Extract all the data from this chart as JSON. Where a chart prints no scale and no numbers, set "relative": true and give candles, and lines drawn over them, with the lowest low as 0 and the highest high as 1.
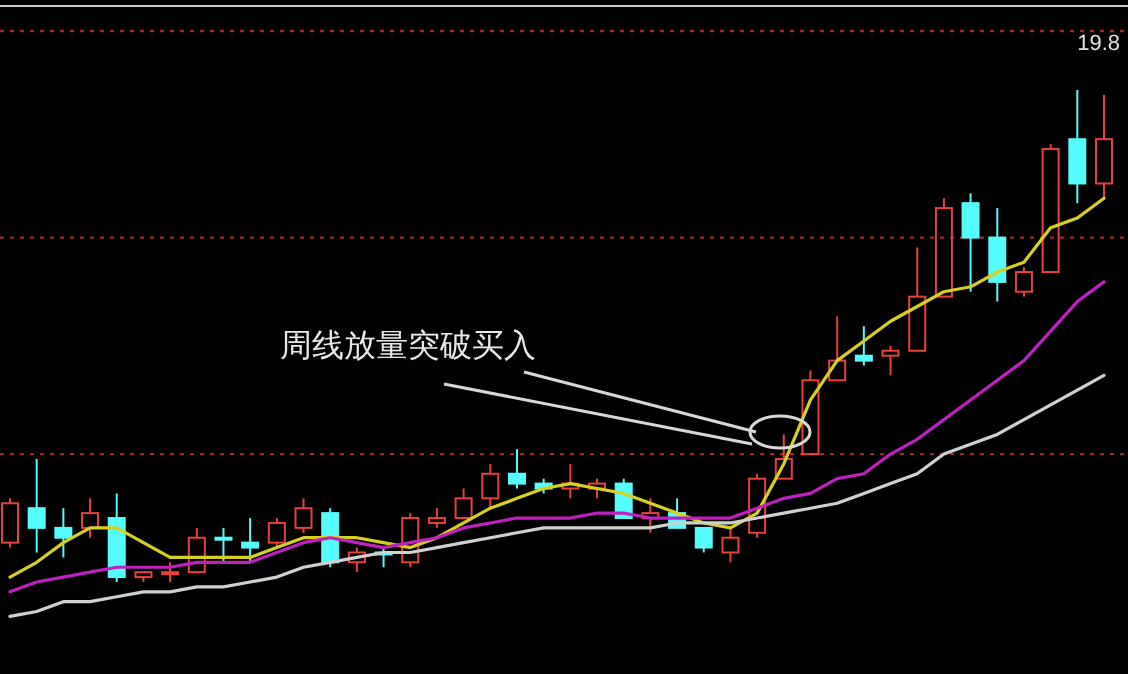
{
  "chart_data": {
    "type": "candlestick",
    "relative": true,
    "categories": [
      null,
      null,
      null,
      null,
      null,
      null,
      null,
      null,
      null,
      null,
      null,
      null,
      null,
      null,
      null,
      null,
      null,
      null,
      null,
      null,
      null,
      null,
      null,
      null,
      null,
      null,
      null,
      null,
      null,
      null,
      null,
      null,
      null,
      null,
      null,
      null,
      null,
      null,
      null,
      null,
      null,
      null
    ],
    "ohlc": [
      [
        0.08,
        0.17,
        0.07,
        0.16
      ],
      [
        0.15,
        0.25,
        0.06,
        0.11
      ],
      [
        0.11,
        0.15,
        0.05,
        0.09
      ],
      [
        0.11,
        0.17,
        0.09,
        0.14
      ],
      [
        0.13,
        0.18,
        0.0,
        0.01
      ],
      [
        0.01,
        0.02,
        0.0,
        0.02
      ],
      [
        0.02,
        0.04,
        0.0,
        0.02
      ],
      [
        0.02,
        0.11,
        0.02,
        0.09
      ],
      [
        0.09,
        0.11,
        0.04,
        0.09
      ],
      [
        0.08,
        0.13,
        0.04,
        0.07
      ],
      [
        0.08,
        0.13,
        0.07,
        0.12
      ],
      [
        0.11,
        0.17,
        0.1,
        0.15
      ],
      [
        0.14,
        0.15,
        0.03,
        0.04
      ],
      [
        0.04,
        0.07,
        0.02,
        0.06
      ],
      [
        0.06,
        0.07,
        0.03,
        0.06
      ],
      [
        0.04,
        0.14,
        0.03,
        0.13
      ],
      [
        0.12,
        0.15,
        0.11,
        0.13
      ],
      [
        0.13,
        0.19,
        0.13,
        0.17
      ],
      [
        0.17,
        0.24,
        0.15,
        0.22
      ],
      [
        0.22,
        0.27,
        0.19,
        0.2
      ],
      [
        0.2,
        0.21,
        0.18,
        0.19
      ],
      [
        0.19,
        0.24,
        0.17,
        0.2
      ],
      [
        0.19,
        0.21,
        0.17,
        0.2
      ],
      [
        0.2,
        0.21,
        0.13,
        0.13
      ],
      [
        0.13,
        0.17,
        0.1,
        0.14
      ],
      [
        0.14,
        0.17,
        0.11,
        0.11
      ],
      [
        0.11,
        0.11,
        0.06,
        0.07
      ],
      [
        0.06,
        0.11,
        0.04,
        0.09
      ],
      [
        0.1,
        0.22,
        0.09,
        0.21
      ],
      [
        0.21,
        0.3,
        0.21,
        0.25
      ],
      [
        0.26,
        0.43,
        0.26,
        0.41
      ],
      [
        0.41,
        0.54,
        0.41,
        0.45
      ],
      [
        0.46,
        0.52,
        0.44,
        0.45
      ],
      [
        0.46,
        0.48,
        0.42,
        0.47
      ],
      [
        0.47,
        0.68,
        0.47,
        0.58
      ],
      [
        0.58,
        0.78,
        0.58,
        0.76
      ],
      [
        0.77,
        0.79,
        0.59,
        0.7
      ],
      [
        0.7,
        0.76,
        0.57,
        0.61
      ],
      [
        0.59,
        0.64,
        0.58,
        0.63
      ],
      [
        0.63,
        0.89,
        0.63,
        0.88
      ],
      [
        0.9,
        1.0,
        0.77,
        0.81
      ],
      [
        0.81,
        0.99,
        0.78,
        0.9
      ]
    ],
    "colors": [
      "#e8413c",
      "#54fcfc",
      "#54fcfc",
      "#e8413c",
      "#54fcfc",
      "#e8413c",
      "#e8413c",
      "#e8413c",
      "#54fcfc",
      "#54fcfc",
      "#e8413c",
      "#e8413c",
      "#54fcfc",
      "#e8413c",
      "#54fcfc",
      "#e8413c",
      "#e8413c",
      "#e8413c",
      "#e8413c",
      "#54fcfc",
      "#54fcfc",
      "#e8413c",
      "#e8413c",
      "#54fcfc",
      "#e8413c",
      "#54fcfc",
      "#54fcfc",
      "#e8413c",
      "#e8413c",
      "#e8413c",
      "#e8413c",
      "#e8413c",
      "#54fcfc",
      "#e8413c",
      "#e8413c",
      "#e8413c",
      "#54fcfc",
      "#54fcfc",
      "#e8413c",
      "#e8413c",
      "#54fcfc",
      "#e8413c"
    ],
    "series": [
      {
        "type": "line",
        "color": "#d8d020",
        "values": [
          0.01,
          0.04,
          0.08,
          0.11,
          0.11,
          0.08,
          0.05,
          0.05,
          0.05,
          0.05,
          0.07,
          0.09,
          0.09,
          0.09,
          0.08,
          0.07,
          0.09,
          0.12,
          0.15,
          0.17,
          0.19,
          0.2,
          0.19,
          0.18,
          0.16,
          0.14,
          0.12,
          0.11,
          0.14,
          0.24,
          0.37,
          0.45,
          0.49,
          0.53,
          0.56,
          0.59,
          0.6,
          0.63,
          0.65,
          0.72,
          0.74,
          0.78
        ]
      },
      {
        "type": "line",
        "color": "#c020c0",
        "values": [
          -0.02,
          0.0,
          0.01,
          0.02,
          0.03,
          0.03,
          0.03,
          0.04,
          0.04,
          0.04,
          0.06,
          0.08,
          0.09,
          0.08,
          0.07,
          0.08,
          0.09,
          0.11,
          0.12,
          0.13,
          0.13,
          0.13,
          0.14,
          0.14,
          0.13,
          0.13,
          0.13,
          0.13,
          0.15,
          0.17,
          0.18,
          0.21,
          0.22,
          0.26,
          0.29,
          0.33,
          0.37,
          0.41,
          0.45,
          0.51,
          0.57,
          0.61
        ]
      },
      {
        "type": "line",
        "color": "#d0d0d0",
        "values": [
          -0.07,
          -0.06,
          -0.04,
          -0.04,
          -0.03,
          -0.02,
          -0.02,
          -0.01,
          -0.01,
          0.0,
          0.01,
          0.03,
          0.04,
          0.05,
          0.06,
          0.06,
          0.07,
          0.08,
          0.09,
          0.1,
          0.11,
          0.11,
          0.11,
          0.11,
          0.11,
          0.12,
          0.12,
          0.12,
          0.13,
          0.14,
          0.15,
          0.16,
          0.18,
          0.2,
          0.22,
          0.26,
          0.28,
          0.3,
          0.33,
          0.36,
          0.39,
          0.42
        ]
      }
    ],
    "ref_lines": [
      {
        "axis": "y",
        "value": 0.26,
        "color": "#a02828",
        "line_style": "dotted"
      },
      {
        "axis": "y",
        "value": 0.7,
        "color": "#a02828",
        "line_style": "dotted"
      },
      {
        "axis": "y",
        "value": 1.12,
        "color": "#a02828",
        "line_style": "dotted"
      }
    ],
    "annotations": [
      "周线放量突破买入",
      "19.8"
    ]
  }
}
